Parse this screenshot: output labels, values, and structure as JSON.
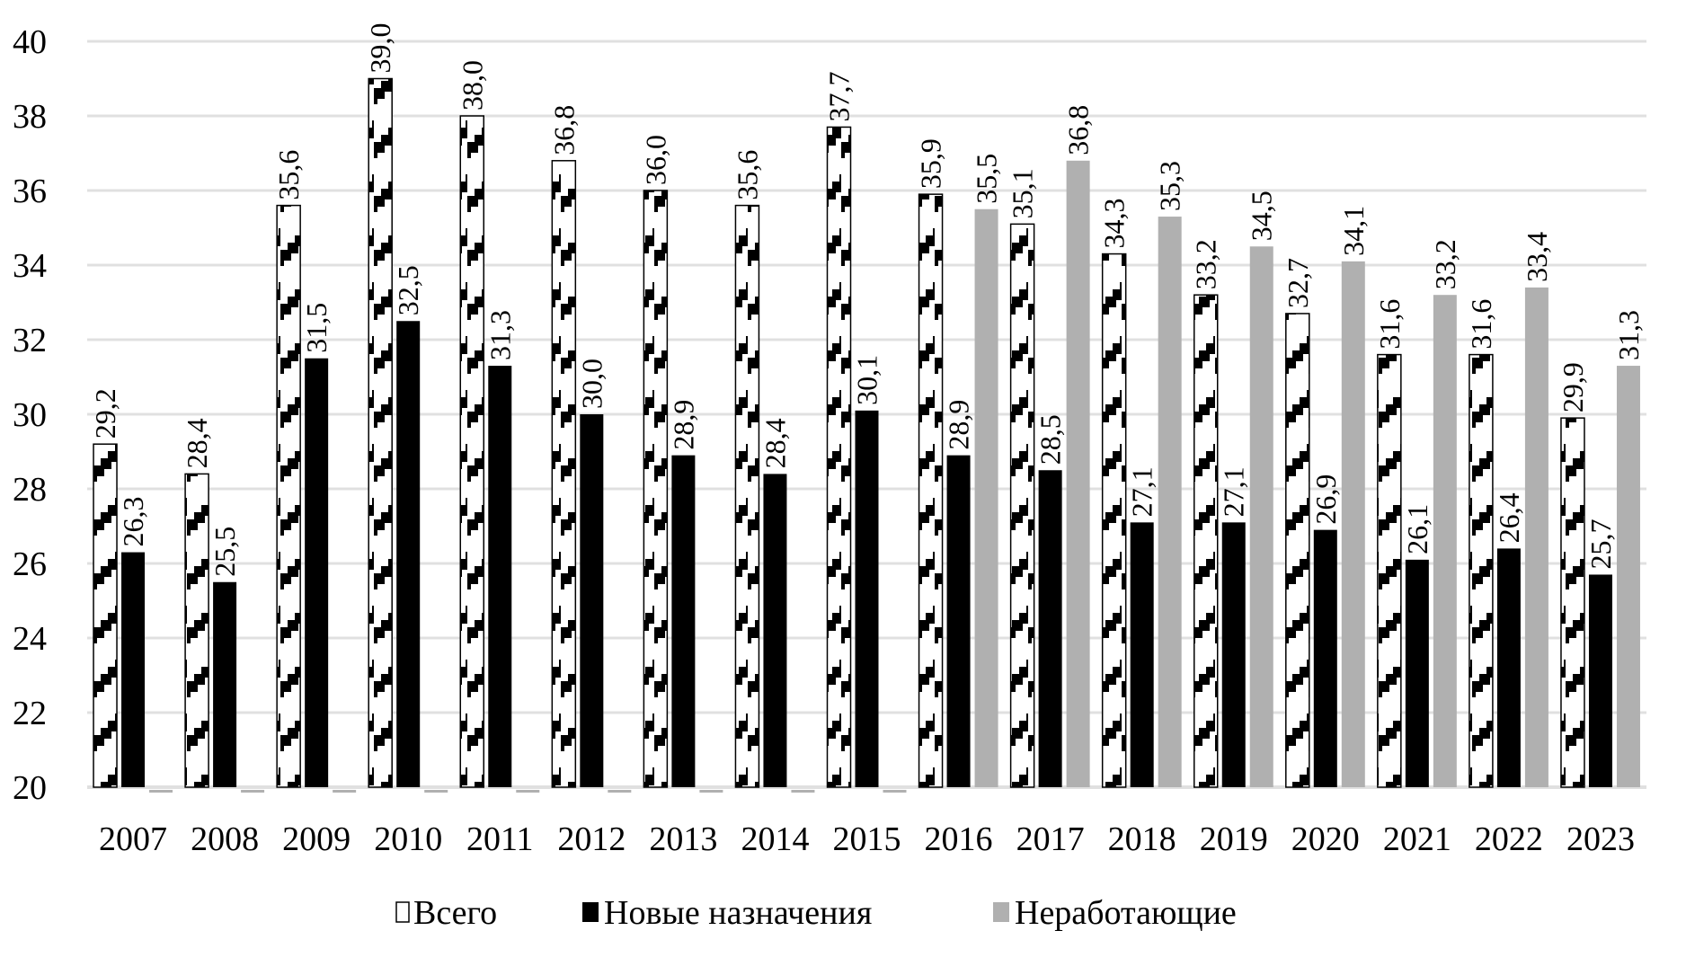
{
  "chart_data": {
    "type": "bar",
    "title": "",
    "xlabel": "",
    "ylabel": "",
    "ylim": [
      20,
      40
    ],
    "yticks": [
      "20",
      "22",
      "24",
      "26",
      "28",
      "30",
      "32",
      "34",
      "36",
      "38",
      "40"
    ],
    "grid": true,
    "legend_position": "bottom",
    "categories": [
      "2007",
      "2008",
      "2009",
      "2010",
      "2011",
      "2012",
      "2013",
      "2014",
      "2015",
      "2016",
      "2017",
      "2018",
      "2019",
      "2020",
      "2021",
      "2022",
      "2023"
    ],
    "series": [
      {
        "name": "Всего",
        "pattern": "hatched",
        "color": "#000000",
        "values": [
          29.2,
          28.4,
          35.6,
          39.0,
          38.0,
          36.8,
          36.0,
          35.6,
          37.7,
          35.9,
          35.1,
          34.3,
          33.2,
          32.7,
          31.6,
          31.6,
          29.9
        ],
        "labels": [
          "29,2",
          "28,4",
          "35,6",
          "39,0",
          "38,0",
          "36,8",
          "36,0",
          "35,6",
          "37,7",
          "35,9",
          "35,1",
          "34,3",
          "33,2",
          "32,7",
          "31,6",
          "31,6",
          "29,9"
        ]
      },
      {
        "name": "Новые назначения",
        "color": "#000000",
        "values": [
          26.3,
          25.5,
          31.5,
          32.5,
          31.3,
          30.0,
          28.9,
          28.4,
          30.1,
          28.9,
          28.5,
          27.1,
          27.1,
          26.9,
          26.1,
          26.4,
          25.7
        ],
        "labels": [
          "26,3",
          "25,5",
          "31,5",
          "32,5",
          "31,3",
          "30,0",
          "28,9",
          "28,4",
          "30,1",
          "28,9",
          "28,5",
          "27,1",
          "27,1",
          "26,9",
          "26,1",
          "26,4",
          "25,7"
        ]
      },
      {
        "name": "Неработающие",
        "color": "#b0b0b0",
        "values": [
          null,
          null,
          null,
          null,
          null,
          null,
          null,
          null,
          null,
          35.5,
          36.8,
          35.3,
          34.5,
          34.1,
          33.2,
          33.4,
          31.3
        ],
        "labels": [
          "",
          "",
          "",
          "",
          "",
          "",
          "",
          "",
          "",
          "35,5",
          "36,8",
          "35,3",
          "34,5",
          "34,1",
          "33,2",
          "33,4",
          "31,3"
        ]
      }
    ]
  }
}
